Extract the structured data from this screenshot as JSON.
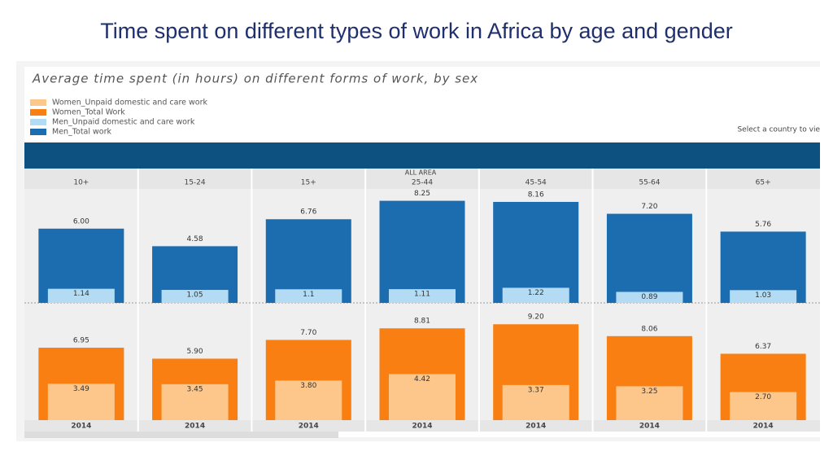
{
  "page": {
    "title": "Time spent on different types of work in Africa by age and gender"
  },
  "chart_data": {
    "type": "bar",
    "title": "Average time spent (in hours) on different forms of work, by sex",
    "note": "Select a country to vie",
    "area_label": "ALL AREA",
    "categories": [
      "10+",
      "15-24",
      "15+",
      "25-44",
      "45-54",
      "55-64",
      "65+"
    ],
    "years": [
      "2014",
      "2014",
      "2014",
      "2014",
      "2014",
      "2014",
      "2014"
    ],
    "series": [
      {
        "name": "Women_Unpaid domestic and care work",
        "color": "#fdc68a",
        "panel": "women",
        "values": [
          3.49,
          3.45,
          3.8,
          4.42,
          3.37,
          3.25,
          2.7
        ],
        "value_labels": [
          "3.49",
          "3.45",
          "3.80",
          "4.42",
          "3.37",
          "3.25",
          "2.70"
        ]
      },
      {
        "name": "Women_Total Work",
        "color": "#f97f12",
        "panel": "women",
        "values": [
          6.95,
          5.9,
          7.7,
          8.81,
          9.2,
          8.06,
          6.37
        ],
        "value_labels": [
          "6.95",
          "5.90",
          "7.70",
          "8.81",
          "9.20",
          "8.06",
          "6.37"
        ]
      },
      {
        "name": "Men_Unpaid domestic and care work",
        "color": "#b3dcf4",
        "panel": "men",
        "values": [
          1.14,
          1.05,
          1.1,
          1.11,
          1.22,
          0.89,
          1.03
        ]
      },
      {
        "name": "Men_Total work",
        "color": "#1b6db0",
        "panel": "men",
        "values": [
          6,
          4.58,
          6.76,
          8.25,
          8.16,
          7.2,
          5.76
        ],
        "value_labels": [
          "6.00",
          "4.58",
          "6.76",
          "8.25",
          "8.16",
          "7.20",
          "5.76"
        ]
      }
    ]
  }
}
